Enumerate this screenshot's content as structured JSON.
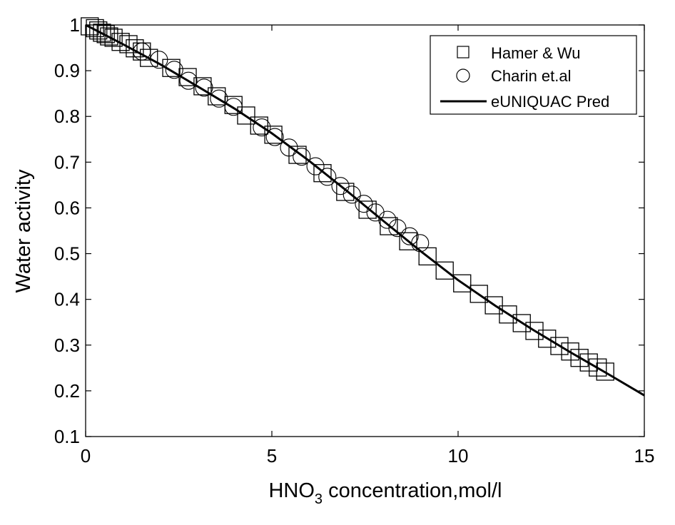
{
  "chart_data": {
    "type": "scatter",
    "title": "",
    "xlabel_main": "HNO",
    "xlabel_sub": "3",
    "xlabel_rest": " concentration,mol/l",
    "ylabel": "Water activity",
    "xlim": [
      0,
      15
    ],
    "ylim": [
      0.1,
      1
    ],
    "xticks": [
      "0",
      "5",
      "10",
      "15"
    ],
    "yticks": [
      "0.1",
      "0.2",
      "0.3",
      "0.4",
      "0.5",
      "0.6",
      "0.7",
      "0.8",
      "0.9",
      "1"
    ],
    "grid": false,
    "legend_placement": "top-right",
    "series": [
      {
        "name": "Hamer & Wu",
        "marker": "square",
        "points": [
          [
            0.11,
            0.997
          ],
          [
            0.25,
            0.993
          ],
          [
            0.34,
            0.988
          ],
          [
            0.44,
            0.983
          ],
          [
            0.54,
            0.98
          ],
          [
            0.63,
            0.975
          ],
          [
            0.75,
            0.972
          ],
          [
            0.94,
            0.963
          ],
          [
            1.15,
            0.958
          ],
          [
            1.32,
            0.949
          ],
          [
            1.51,
            0.942
          ],
          [
            1.7,
            0.928
          ],
          [
            2.3,
            0.906
          ],
          [
            2.74,
            0.886
          ],
          [
            3.14,
            0.866
          ],
          [
            3.52,
            0.844
          ],
          [
            3.97,
            0.825
          ],
          [
            4.31,
            0.802
          ],
          [
            4.66,
            0.78
          ],
          [
            5.04,
            0.76
          ],
          [
            5.69,
            0.716
          ],
          [
            6.36,
            0.676
          ],
          [
            6.97,
            0.635
          ],
          [
            7.57,
            0.596
          ],
          [
            8.14,
            0.56
          ],
          [
            8.66,
            0.527
          ],
          [
            9.18,
            0.494
          ],
          [
            9.64,
            0.463
          ],
          [
            10.11,
            0.435
          ],
          [
            10.56,
            0.412
          ],
          [
            10.96,
            0.387
          ],
          [
            11.34,
            0.367
          ],
          [
            11.71,
            0.348
          ],
          [
            12.05,
            0.331
          ],
          [
            12.39,
            0.314
          ],
          [
            12.72,
            0.298
          ],
          [
            13.01,
            0.286
          ],
          [
            13.26,
            0.272
          ],
          [
            13.51,
            0.262
          ],
          [
            13.75,
            0.251
          ],
          [
            13.95,
            0.242
          ]
        ]
      },
      {
        "name": "Charin et.al",
        "marker": "circle",
        "points": [
          [
            1.51,
            0.942
          ],
          [
            1.97,
            0.924
          ],
          [
            2.38,
            0.902
          ],
          [
            2.76,
            0.878
          ],
          [
            3.18,
            0.863
          ],
          [
            3.58,
            0.839
          ],
          [
            3.97,
            0.821
          ],
          [
            4.73,
            0.776
          ],
          [
            5.08,
            0.755
          ],
          [
            5.46,
            0.732
          ],
          [
            5.8,
            0.712
          ],
          [
            6.17,
            0.691
          ],
          [
            6.49,
            0.668
          ],
          [
            6.84,
            0.648
          ],
          [
            7.15,
            0.629
          ],
          [
            7.47,
            0.609
          ],
          [
            7.78,
            0.59
          ],
          [
            8.1,
            0.574
          ],
          [
            8.37,
            0.556
          ],
          [
            8.7,
            0.538
          ],
          [
            8.98,
            0.523
          ]
        ]
      },
      {
        "name": "eUNIQUAC Pred",
        "marker": "line",
        "points": [
          [
            0,
            1.0
          ],
          [
            1,
            0.958
          ],
          [
            2,
            0.914
          ],
          [
            3,
            0.866
          ],
          [
            4,
            0.817
          ],
          [
            5,
            0.763
          ],
          [
            6,
            0.703
          ],
          [
            7,
            0.638
          ],
          [
            8,
            0.571
          ],
          [
            9,
            0.505
          ],
          [
            10,
            0.442
          ],
          [
            11,
            0.386
          ],
          [
            12,
            0.334
          ],
          [
            13,
            0.285
          ],
          [
            14,
            0.238
          ],
          [
            15,
            0.19
          ]
        ]
      }
    ]
  }
}
